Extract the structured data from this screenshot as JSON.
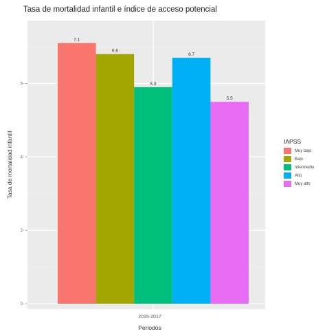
{
  "chart_data": {
    "type": "bar",
    "title": "Tasa de mortalidad infantil e índice de acceso potencial",
    "xlabel": "Periodos",
    "ylabel": "Tasa de mortalidad infantil",
    "categories": [
      "2015-2017"
    ],
    "series": [
      {
        "name": "Muy bajo",
        "values": [
          7.1
        ],
        "label": "7.1",
        "color": "#F8766D"
      },
      {
        "name": "Bajo",
        "values": [
          6.8
        ],
        "label": "6.8",
        "color": "#A3A500"
      },
      {
        "name": "Intermedio",
        "values": [
          5.9
        ],
        "label": "5.9",
        "color": "#00BF7D"
      },
      {
        "name": "Alto",
        "values": [
          6.7
        ],
        "label": "6.7",
        "color": "#00B0F6"
      },
      {
        "name": "Muy alto",
        "values": [
          5.5
        ],
        "label": "5.5",
        "color": "#E76BF3"
      }
    ],
    "yticks": [
      0,
      2,
      4,
      6
    ],
    "ylim": [
      0,
      7.45
    ],
    "grid": true,
    "legend": {
      "title": "IAPSS",
      "position": "right"
    }
  }
}
